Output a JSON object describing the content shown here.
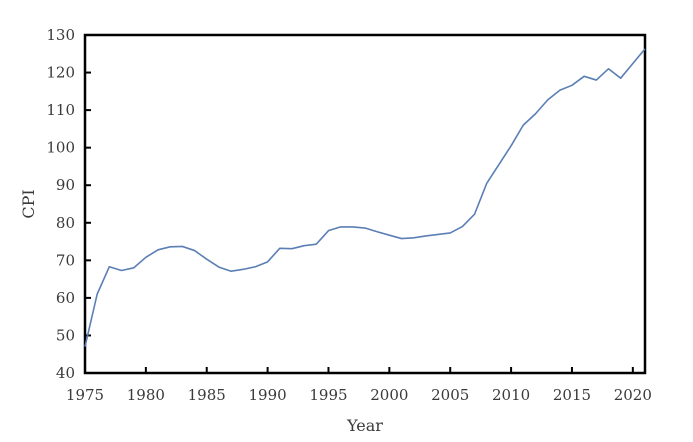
{
  "chart_data": {
    "type": "line",
    "title": "",
    "xlabel": "Year",
    "ylabel": "CPI",
    "xlim": [
      1975,
      2021
    ],
    "ylim": [
      40,
      130
    ],
    "xticks": [
      1975,
      1980,
      1985,
      1990,
      1995,
      2000,
      2005,
      2010,
      2015,
      2020
    ],
    "yticks": [
      40,
      50,
      60,
      70,
      80,
      90,
      100,
      110,
      120,
      130
    ],
    "grid": false,
    "legend": "none",
    "line_color": "#5b7fb5",
    "x": [
      1975,
      1976,
      1977,
      1978,
      1979,
      1980,
      1981,
      1982,
      1983,
      1984,
      1985,
      1986,
      1987,
      1988,
      1989,
      1990,
      1991,
      1992,
      1993,
      1994,
      1995,
      1996,
      1997,
      1998,
      1999,
      2000,
      2001,
      2002,
      2003,
      2004,
      2005,
      2006,
      2007,
      2008,
      2009,
      2010,
      2011,
      2012,
      2013,
      2014,
      2015,
      2016,
      2017,
      2018,
      2019,
      2020,
      2021
    ],
    "series": [
      {
        "values": [
          47,
          61,
          68.3,
          67.3,
          68,
          70.8,
          72.8,
          73.6,
          73.7,
          72.6,
          70.3,
          68.2,
          67.1,
          67.6,
          68.3,
          69.6,
          73.2,
          73.1,
          73.9,
          74.3,
          77.9,
          78.9,
          78.9,
          78.6,
          77.6,
          76.7,
          75.8,
          76,
          76.5,
          76.9,
          77.3,
          79,
          82.3,
          90.5,
          95.5,
          100.5,
          106,
          109,
          112.7,
          115.3,
          116.6,
          119,
          118,
          121,
          118.5,
          122.4,
          126.3
        ]
      }
    ]
  }
}
